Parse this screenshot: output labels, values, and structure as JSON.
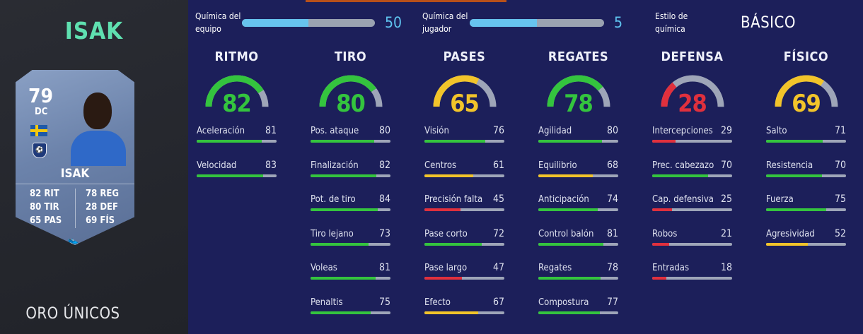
{
  "player": {
    "title": "ISAK",
    "rarity": "ORO ÚNICOS",
    "card": {
      "rating": "79",
      "position": "DC",
      "name": "ISAK",
      "club_crest": "crest-icon",
      "flag": "sweden-flag-icon",
      "boot_icon": "boot-icon",
      "stats_left": [
        "82 RIT",
        "80 TIR",
        "65 PAS"
      ],
      "stats_right": [
        "78 REG",
        "28 DEF",
        "69 FÍS"
      ]
    }
  },
  "chemistry": {
    "team_label": [
      "Química del",
      "equipo"
    ],
    "team_value": "50",
    "team_fraction": 0.5,
    "player_label": [
      "Química del",
      "jugador"
    ],
    "player_value": "5",
    "player_fraction": 0.5,
    "style_label": [
      "Estilo de",
      "química"
    ],
    "style_value": "BÁSICO"
  },
  "colors": {
    "green": "#34c43e",
    "yellow": "#f2c42a",
    "red": "#e0303d",
    "track": "#9ea5b8",
    "chem": "#67c3ee"
  },
  "categories": [
    {
      "title": "RITMO",
      "value": "82",
      "color": "green",
      "attributes": [
        {
          "label": "Aceleración",
          "value": "81"
        },
        {
          "label": "Velocidad",
          "value": "83"
        }
      ]
    },
    {
      "title": "TIRO",
      "value": "80",
      "color": "green",
      "attributes": [
        {
          "label": "Pos. ataque",
          "value": "80"
        },
        {
          "label": "Finalización",
          "value": "82"
        },
        {
          "label": "Pot. de tiro",
          "value": "84"
        },
        {
          "label": "Tiro lejano",
          "value": "73"
        },
        {
          "label": "Voleas",
          "value": "81"
        },
        {
          "label": "Penaltis",
          "value": "75"
        }
      ]
    },
    {
      "title": "PASES",
      "value": "65",
      "color": "yellow",
      "attributes": [
        {
          "label": "Visión",
          "value": "76"
        },
        {
          "label": "Centros",
          "value": "61"
        },
        {
          "label": "Precisión falta",
          "value": "45"
        },
        {
          "label": "Pase corto",
          "value": "72"
        },
        {
          "label": "Pase largo",
          "value": "47"
        },
        {
          "label": "Efecto",
          "value": "67"
        }
      ]
    },
    {
      "title": "REGATES",
      "value": "78",
      "color": "green",
      "attributes": [
        {
          "label": "Agilidad",
          "value": "80"
        },
        {
          "label": "Equilibrio",
          "value": "68"
        },
        {
          "label": "Anticipación",
          "value": "74"
        },
        {
          "label": "Control balón",
          "value": "81"
        },
        {
          "label": "Regates",
          "value": "78"
        },
        {
          "label": "Compostura",
          "value": "77"
        }
      ]
    },
    {
      "title": "DEFENSA",
      "value": "28",
      "color": "red",
      "attributes": [
        {
          "label": "Intercepciones",
          "value": "29"
        },
        {
          "label": "Prec. cabezazo",
          "value": "70"
        },
        {
          "label": "Cap. defensiva",
          "value": "25"
        },
        {
          "label": "Robos",
          "value": "21"
        },
        {
          "label": "Entradas",
          "value": "18"
        }
      ]
    },
    {
      "title": "FÍSICO",
      "value": "69",
      "color": "yellow",
      "attributes": [
        {
          "label": "Salto",
          "value": "71"
        },
        {
          "label": "Resistencia",
          "value": "70"
        },
        {
          "label": "Fuerza",
          "value": "75"
        },
        {
          "label": "Agresividad",
          "value": "52"
        }
      ]
    }
  ]
}
